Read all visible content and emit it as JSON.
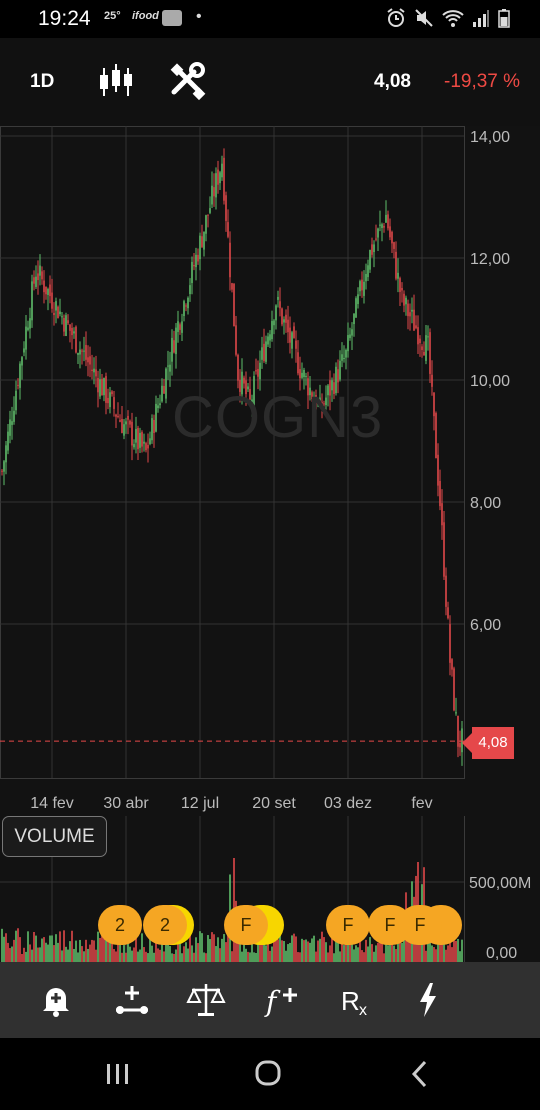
{
  "status": {
    "time": "19:24",
    "temp": "25°",
    "ifood": "ifood"
  },
  "toolbar": {
    "period": "1D",
    "price": "4,08",
    "change": "-19,37 %",
    "change_color": "#ef4a44",
    "icons": [
      "candlestick-icon",
      "tools-icon"
    ]
  },
  "chart": {
    "watermark": "COGN3",
    "current_price_label": "4,08",
    "y_ticks": [
      "14,00",
      "12,00",
      "10,00",
      "8,00",
      "6,00"
    ],
    "x_ticks": [
      "14 fev",
      "30 abr",
      "12 jul",
      "20 set",
      "03 dez",
      "fev"
    ]
  },
  "volume": {
    "label": "VOLUME",
    "y_ticks": [
      "500,00M",
      "0,00"
    ],
    "events": [
      "2",
      "2",
      "F",
      "F",
      "F",
      "F"
    ]
  },
  "bottombar": {
    "icons": [
      "add-alert-icon",
      "indicator-add-icon",
      "compare-icon",
      "function-add-icon",
      "rx-icon",
      "flash-icon"
    ]
  },
  "navbar": {
    "icons": [
      "recent-apps-icon",
      "home-icon",
      "back-icon"
    ]
  },
  "chart_data": {
    "type": "candlestick",
    "title": "COGN3",
    "ylim": [
      4,
      14
    ],
    "x_ticks": [
      "14 fev",
      "30 abr",
      "12 jul",
      "20 set",
      "03 dez",
      "fev"
    ],
    "close_path": [
      {
        "x": "start",
        "y": 8.5
      },
      {
        "x": "14 fev",
        "y": 11.8
      },
      {
        "x": "mar",
        "y": 10.7
      },
      {
        "x": "30 abr",
        "y": 9.3
      },
      {
        "x": "mai",
        "y": 8.8
      },
      {
        "x": "jun",
        "y": 10.8
      },
      {
        "x": "12 jul",
        "y": 12.6
      },
      {
        "x": "jul max",
        "y": 13.6
      },
      {
        "x": "ago",
        "y": 10.1
      },
      {
        "x": "ago min",
        "y": 9.6
      },
      {
        "x": "20 set",
        "y": 11.3
      },
      {
        "x": "out",
        "y": 10.2
      },
      {
        "x": "nov",
        "y": 9.5
      },
      {
        "x": "03 dez",
        "y": 10.4
      },
      {
        "x": "dez",
        "y": 12.0
      },
      {
        "x": "jan max",
        "y": 12.7
      },
      {
        "x": "jan",
        "y": 11.3
      },
      {
        "x": "fev",
        "y": 10.5
      },
      {
        "x": "fev",
        "y": 8.0
      },
      {
        "x": "mar",
        "y": 5.4
      },
      {
        "x": "last",
        "y": 4.08
      }
    ],
    "last_value": 4.08,
    "volume_ylim": [
      0,
      500000000
    ]
  },
  "colors": {
    "up": "#5fbf6b",
    "down": "#e0484a",
    "grid": "#333333",
    "event": "#f5a623"
  }
}
